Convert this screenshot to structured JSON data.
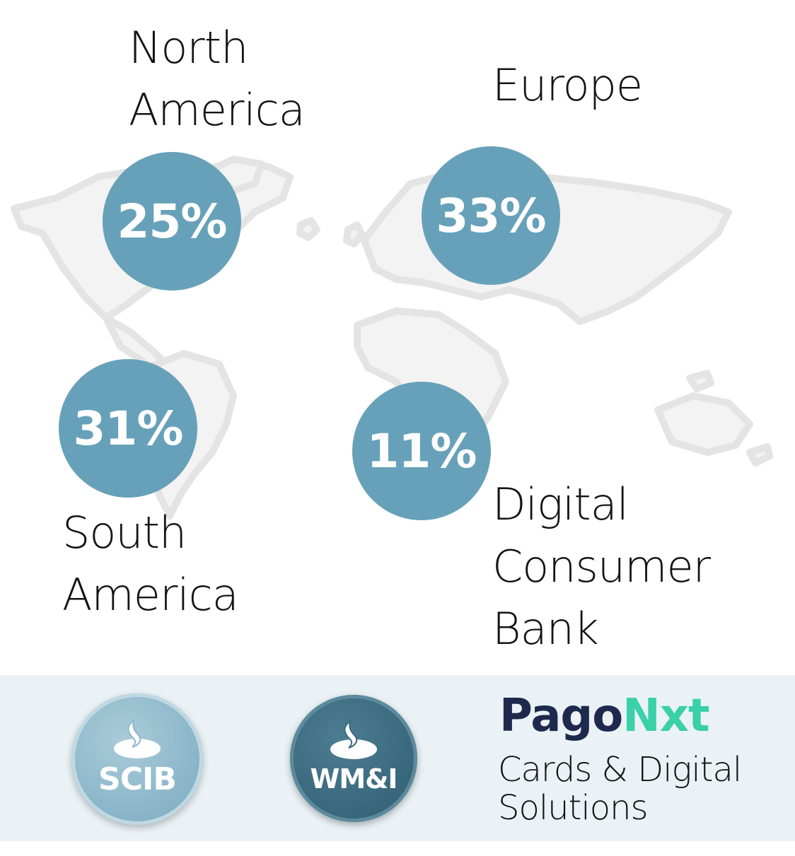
{
  "regions": [
    {
      "label": "North\nAmerica",
      "value": "25%"
    },
    {
      "label": "Europe",
      "value": "33%"
    },
    {
      "label": "South\nAmerica",
      "value": "31%"
    },
    {
      "label": "Digital\nConsumer\nBank",
      "value": "11%"
    }
  ],
  "bottom_band": {
    "badges": [
      {
        "label": "SCIB",
        "icon": "santander-flame-icon"
      },
      {
        "label": "WM&I",
        "icon": "santander-flame-icon"
      }
    ],
    "pagonxt": {
      "logo_part1": "Pago",
      "logo_part2": "Nxt",
      "subtitle": "Cards & Digital\nSolutions"
    }
  },
  "colors": {
    "bubble": "#67a1b9",
    "map": "#f3f3f3",
    "map_outline": "#e6e6e6",
    "band": "#eaf2f6",
    "pagonxt_navy": "#1d2a4d",
    "pagonxt_green": "#3ad0a8"
  }
}
